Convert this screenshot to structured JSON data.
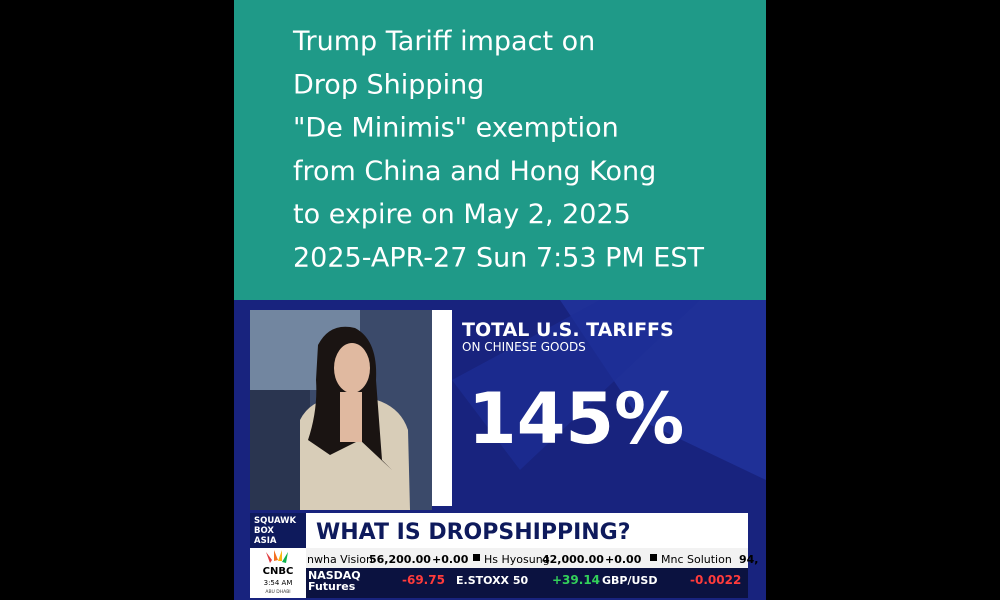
{
  "overlay": {
    "lines": [
      "Trump Tariff impact on",
      "Drop Shipping",
      "\"De Minimis\" exemption",
      "from China and Hong Kong",
      "to expire on May 2, 2025",
      "2025-APR-27 Sun 7:53 PM EST"
    ]
  },
  "graphic": {
    "title": "TOTAL U.S. TARIFFS",
    "subtitle": "ON CHINESE GOODS",
    "value": "145%"
  },
  "lower_third": {
    "show": [
      "SQUAWK",
      "BOX",
      "ASIA"
    ],
    "headline": "WHAT IS DROPSHIPPING?"
  },
  "ticker": [
    {
      "name": "nwha Vision",
      "price": "56,200.00",
      "change": "+0.00"
    },
    {
      "name": "Hs Hyosung",
      "price": "42,000.00",
      "change": "+0.00"
    },
    {
      "name": "Mnc Solution",
      "price": "94,"
    }
  ],
  "clock": {
    "network": "CNBC",
    "time": "3:54 AM",
    "location": "ABU DHABI"
  },
  "markets": [
    {
      "name": [
        "NASDAQ",
        "Futures"
      ],
      "change": "-69.75"
    },
    {
      "name": [
        "E.STOXX 50"
      ],
      "change": "+39.14"
    },
    {
      "name": [
        "GBP/USD"
      ],
      "change": "-0.0022"
    }
  ]
}
